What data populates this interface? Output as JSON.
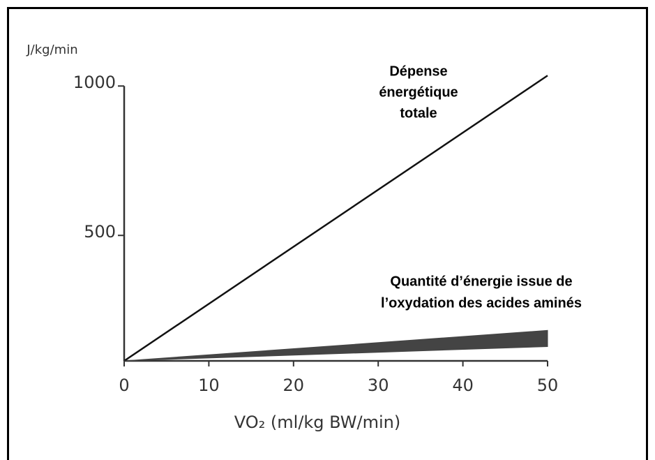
{
  "chart_data": {
    "type": "line",
    "ylabel": "J/kg/min",
    "xlabel": "VO₂ (ml/kg BW/min)",
    "x": [
      0,
      50
    ],
    "series": [
      {
        "color": "#111111",
        "values": [
          80,
          1035
        ]
      },
      {
        "color": "#444444",
        "values": [
          80,
          182
        ],
        "lower": [
          80,
          128
        ]
      }
    ],
    "annotations": [
      {
        "lines": [
          "Dépense",
          "énergétique",
          "totale"
        ]
      },
      {
        "lines": [
          "Quantité d’énergie issue de",
          "l’oxydation des acides aminés"
        ]
      }
    ],
    "xlim": [
      0,
      50
    ],
    "xticks": [
      0,
      10,
      20,
      30,
      40,
      50
    ],
    "ylim": [
      80,
      1040
    ],
    "yticks": [
      500,
      1000
    ],
    "grid": false
  }
}
